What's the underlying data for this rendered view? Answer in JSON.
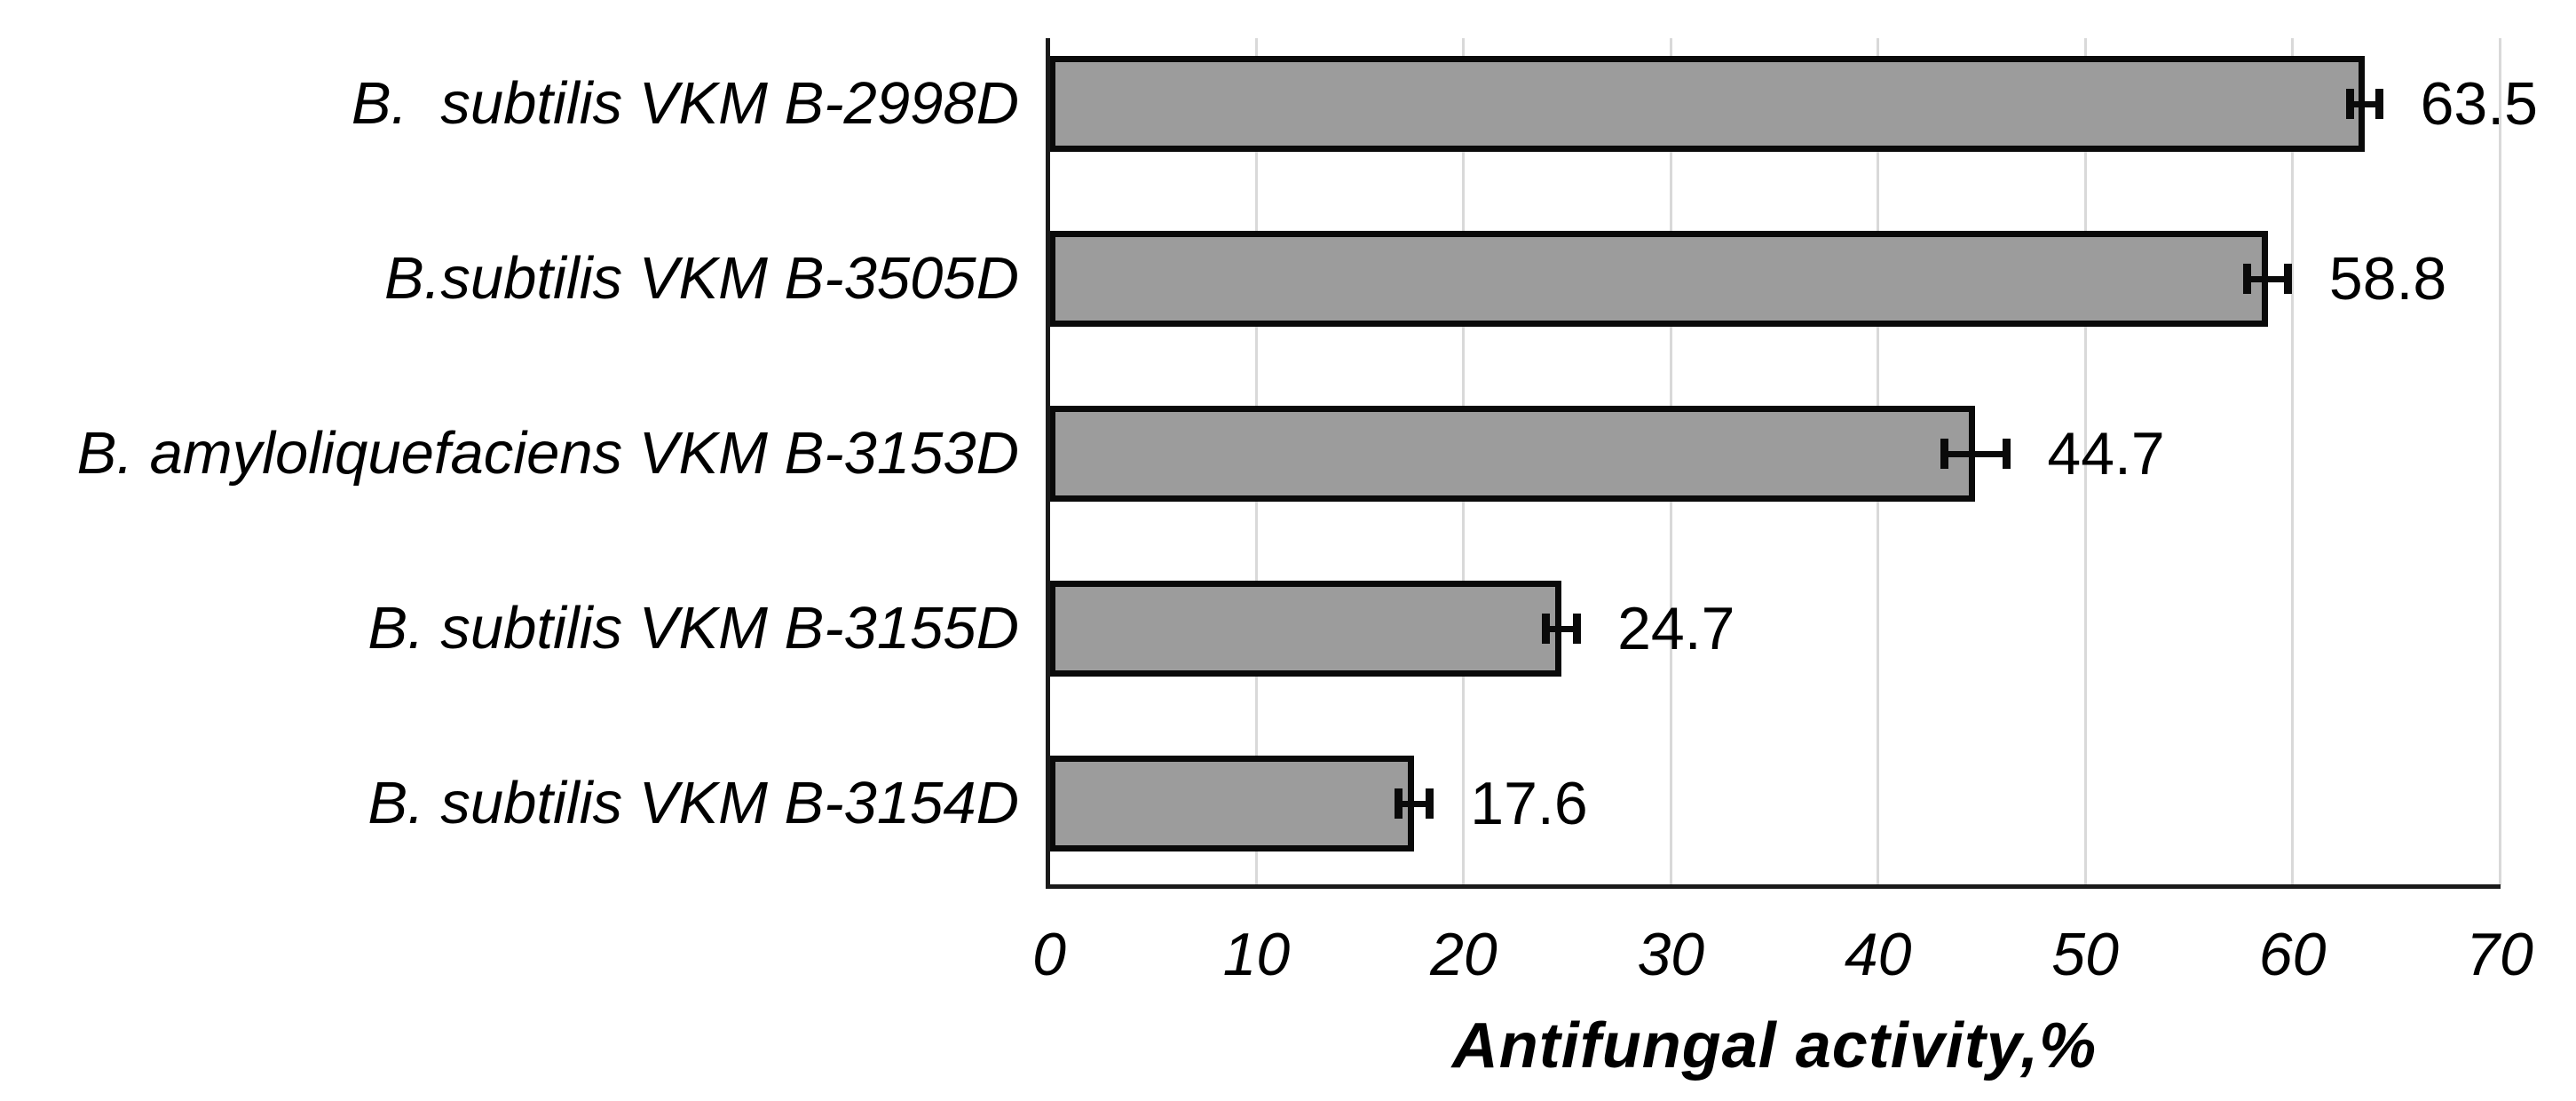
{
  "chart_data": {
    "type": "bar",
    "orientation": "horizontal",
    "title": "",
    "categories": [
      "B.  subtilis VKM B-2998D",
      "B.subtilis VKM B-3505D",
      "B. amyloliquefaciens VKM B-3153D",
      "B. subtilis VKM B-3155D",
      "B. subtilis VKM B-3154D"
    ],
    "values": [
      63.5,
      58.8,
      44.7,
      24.7,
      17.6
    ],
    "errors": [
      0.7,
      1.0,
      1.5,
      0.75,
      0.75
    ],
    "data_labels": [
      "63.5",
      "58.8",
      "44.7",
      "24.7",
      "17.6"
    ],
    "xlabel": "Antifungal activity,%",
    "ylabel": "",
    "xticks": [
      "0",
      "10",
      "20",
      "30",
      "40",
      "50",
      "60",
      "70"
    ],
    "xtick_values": [
      0,
      10,
      20,
      30,
      40,
      50,
      60,
      70
    ],
    "xlim": [
      0,
      70
    ],
    "grid": "vertical",
    "legend": "none",
    "colors": {
      "bar_fill": "#9C9C9C",
      "bar_border": "#0a0a0a",
      "gridline": "#D9D9D9",
      "axis_line": "#1a1a1a",
      "text": "#000000"
    }
  }
}
